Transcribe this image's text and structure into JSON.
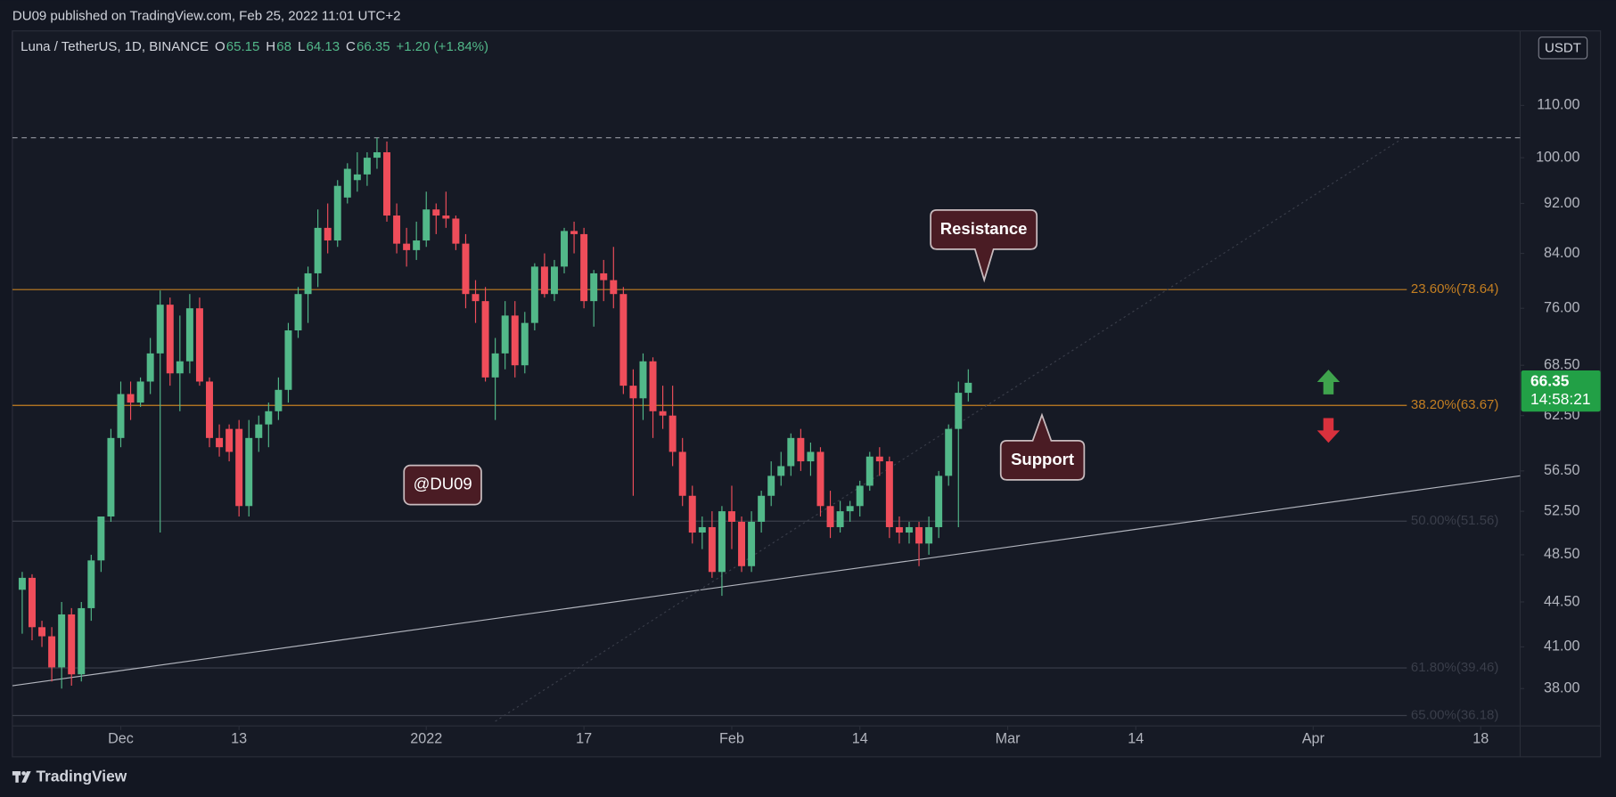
{
  "chart_data": {
    "type": "candlestick",
    "header": "DU09 published on TradingView.com, Feb 25, 2022 11:01 UTC+2",
    "symbol": "Luna / TetherUS, 1D, BINANCE",
    "ohlc_labels": [
      "O",
      "H",
      "L",
      "C"
    ],
    "change_label": "+1.20 (+1.84%)",
    "currency": "USDT",
    "countdown": "14:58:21",
    "callouts": [
      "Resistance",
      "Support"
    ],
    "watermark": "@DU09",
    "brand": "TradingView",
    "up_color": "#52b889",
    "down_color": "#ef4d5a",
    "log_scale": true,
    "grid": false,
    "x": [
      "2021-11-21",
      "2021-11-22",
      "2021-11-23",
      "2021-11-24",
      "2021-11-25",
      "2021-11-26",
      "2021-11-27",
      "2021-11-28",
      "2021-11-29",
      "2021-11-30",
      "2021-12-01",
      "2021-12-02",
      "2021-12-03",
      "2021-12-04",
      "2021-12-05",
      "2021-12-06",
      "2021-12-07",
      "2021-12-08",
      "2021-12-09",
      "2021-12-10",
      "2021-12-11",
      "2021-12-12",
      "2021-12-13",
      "2021-12-14",
      "2021-12-15",
      "2021-12-16",
      "2021-12-17",
      "2021-12-18",
      "2021-12-19",
      "2021-12-20",
      "2021-12-21",
      "2021-12-22",
      "2021-12-23",
      "2021-12-24",
      "2021-12-25",
      "2021-12-26",
      "2021-12-27",
      "2021-12-28",
      "2021-12-29",
      "2021-12-30",
      "2021-12-31",
      "2022-01-01",
      "2022-01-02",
      "2022-01-03",
      "2022-01-04",
      "2022-01-05",
      "2022-01-06",
      "2022-01-07",
      "2022-01-08",
      "2022-01-09",
      "2022-01-10",
      "2022-01-11",
      "2022-01-12",
      "2022-01-13",
      "2022-01-14",
      "2022-01-15",
      "2022-01-16",
      "2022-01-17",
      "2022-01-18",
      "2022-01-19",
      "2022-01-20",
      "2022-01-21",
      "2022-01-22",
      "2022-01-23",
      "2022-01-24",
      "2022-01-25",
      "2022-01-26",
      "2022-01-27",
      "2022-01-28",
      "2022-01-29",
      "2022-01-30",
      "2022-01-31",
      "2022-02-01",
      "2022-02-02",
      "2022-02-03",
      "2022-02-04",
      "2022-02-05",
      "2022-02-06",
      "2022-02-07",
      "2022-02-08",
      "2022-02-09",
      "2022-02-10",
      "2022-02-11",
      "2022-02-12",
      "2022-02-13",
      "2022-02-14",
      "2022-02-15",
      "2022-02-16",
      "2022-02-17",
      "2022-02-18",
      "2022-02-19",
      "2022-02-20",
      "2022-02-21",
      "2022-02-22",
      "2022-02-23",
      "2022-02-24",
      "2022-02-25"
    ],
    "open": [
      45.5,
      46.5,
      42.5,
      41.8,
      39.5,
      43.5,
      39,
      44,
      48,
      52,
      60,
      65,
      64,
      66.5,
      70,
      76.5,
      67.5,
      69,
      76,
      66.5,
      60,
      61,
      61,
      53,
      60,
      61.5,
      63,
      65.5,
      73,
      78,
      81,
      88,
      86,
      93,
      96,
      97,
      100,
      101,
      90,
      85.5,
      84.5,
      86,
      91,
      90,
      89.5,
      85.5,
      78,
      77,
      67,
      70,
      75,
      68.5,
      74,
      82,
      78,
      82,
      87.5,
      87,
      77,
      81,
      80,
      78,
      66,
      64.5,
      69,
      63,
      62.5,
      58.5,
      54,
      50.5,
      51,
      47,
      52.5,
      51.5,
      47.5,
      51.5,
      54,
      56,
      57,
      60,
      57.5,
      58.5,
      53,
      51,
      52.5,
      53,
      55,
      58,
      57.5,
      51,
      50.5,
      51,
      49.5,
      51,
      56,
      61,
      65.15
    ],
    "high": [
      47,
      46.8,
      43,
      42.5,
      44.5,
      44,
      44.5,
      48.5,
      52,
      61,
      66.5,
      66.5,
      67,
      72,
      78.5,
      77.5,
      75,
      78,
      77.5,
      67,
      61.5,
      61.5,
      62,
      62,
      62.5,
      64,
      67,
      74,
      79,
      82,
      91,
      92,
      96,
      99,
      101,
      101,
      103.7,
      103,
      92,
      88,
      89,
      94,
      92,
      94,
      90,
      87,
      80,
      79,
      72,
      77,
      77,
      75.5,
      82.5,
      84,
      83,
      88,
      89,
      88,
      81.5,
      83,
      85,
      79,
      68,
      70,
      69.5,
      66,
      66,
      60,
      55,
      52,
      52.5,
      53,
      55,
      52,
      52.5,
      54.5,
      57.5,
      58.5,
      60.5,
      61,
      59.5,
      59,
      54.5,
      53.5,
      53.5,
      55.5,
      58.5,
      59,
      58,
      52,
      51.5,
      51.5,
      52,
      56.5,
      61.5,
      66.5,
      68
    ],
    "low": [
      42,
      41.5,
      41,
      38.5,
      38,
      38.2,
      38.5,
      43,
      47,
      51.5,
      59,
      62,
      63.5,
      65,
      50.5,
      66,
      63,
      67.5,
      66,
      59,
      58,
      57.5,
      52,
      52,
      58.5,
      59,
      62,
      64,
      72,
      74,
      79,
      84,
      85,
      92,
      94,
      95,
      98,
      89,
      84,
      82,
      83,
      85,
      87,
      88,
      84.5,
      76,
      74,
      66.5,
      62,
      68,
      67,
      67.5,
      73,
      77.5,
      77,
      81,
      84,
      76,
      73.5,
      77,
      76,
      65,
      54,
      62,
      60,
      61,
      57,
      53,
      49.5,
      49,
      46.5,
      45,
      49,
      47,
      47,
      50.5,
      53,
      55,
      56,
      56.5,
      56,
      52,
      50,
      50.5,
      51.5,
      52,
      54.5,
      56,
      50,
      49.5,
      49.5,
      47.5,
      48.5,
      50,
      55,
      51,
      64.13
    ],
    "close": [
      46.5,
      42.5,
      41.8,
      39.5,
      43.5,
      39,
      44,
      48,
      52,
      60,
      65,
      64,
      66.5,
      70,
      76.5,
      67.5,
      69,
      76,
      66.5,
      60,
      59,
      58.5,
      53,
      60,
      61.5,
      63,
      65.5,
      73,
      78,
      81,
      88,
      86,
      95,
      98,
      97,
      100,
      101,
      90,
      85.5,
      84.5,
      86,
      91,
      90,
      89.5,
      85.5,
      78,
      77,
      67,
      70,
      75,
      68.5,
      74,
      82,
      78,
      82,
      87.5,
      87,
      77,
      81,
      80,
      78,
      66,
      64.5,
      69,
      63,
      62.5,
      58.5,
      54,
      50.5,
      51,
      47,
      52.5,
      51.5,
      47.5,
      51.5,
      54,
      56,
      57,
      60,
      57.5,
      58.5,
      53,
      51,
      52.5,
      53,
      55,
      58,
      57.5,
      51,
      50.5,
      51,
      49.5,
      51,
      56,
      61,
      65.15,
      66.35
    ],
    "xlim": [
      "2021-11-20",
      "2022-04-22"
    ],
    "xticks": [
      {
        "value": "2021-12-01",
        "label": "Dec"
      },
      {
        "value": "2021-12-13",
        "label": "13"
      },
      {
        "value": "2022-01-01",
        "label": "2022"
      },
      {
        "value": "2022-01-17",
        "label": "17"
      },
      {
        "value": "2022-02-01",
        "label": "Feb"
      },
      {
        "value": "2022-02-14",
        "label": "14"
      },
      {
        "value": "2022-03-01",
        "label": "Mar"
      },
      {
        "value": "2022-03-14",
        "label": "14"
      },
      {
        "value": "2022-04-01",
        "label": "Apr"
      },
      {
        "value": "2022-04-18",
        "label": "18"
      }
    ],
    "ylim": [
      35.5,
      126
    ],
    "yticks": [
      {
        "value": 110,
        "label": "110.00"
      },
      {
        "value": 100,
        "label": "100.00"
      },
      {
        "value": 92,
        "label": "92.00"
      },
      {
        "value": 84,
        "label": "84.00"
      },
      {
        "value": 76,
        "label": "76.00"
      },
      {
        "value": 68.5,
        "label": "68.50"
      },
      {
        "value": 62.5,
        "label": "62.50"
      },
      {
        "value": 56.5,
        "label": "56.50"
      },
      {
        "value": 52.5,
        "label": "52.50"
      },
      {
        "value": 48.5,
        "label": "48.50"
      },
      {
        "value": 44.5,
        "label": "44.50"
      },
      {
        "value": 41,
        "label": "41.00"
      },
      {
        "value": 38,
        "label": "38.00"
      }
    ],
    "fib_levels": [
      {
        "value": 78.64,
        "label": "23.60%(78.64)",
        "color": "#c47f22"
      },
      {
        "value": 63.67,
        "label": "38.20%(63.67)",
        "color": "#c47f22"
      },
      {
        "value": 51.56,
        "label": "50.00%(51.56)",
        "color": "#3a3e4a"
      },
      {
        "value": 39.46,
        "label": "61.80%(39.46)",
        "color": "#3a3e4a"
      },
      {
        "value": 36.18,
        "label": "65.00%(36.18)",
        "color": "#3a3e4a"
      }
    ],
    "high_line": 103.7,
    "trendlines": [
      {
        "x": [
          "2021-11-20",
          "2022-04-22"
        ],
        "y": [
          38.2,
          56.0
        ],
        "color": "#b2b5be",
        "style": "solid"
      },
      {
        "x": [
          "2022-01-08",
          "2022-04-10"
        ],
        "y": [
          35.8,
          103.5
        ],
        "color": "#3a3e4a",
        "style": "dotted"
      }
    ]
  }
}
